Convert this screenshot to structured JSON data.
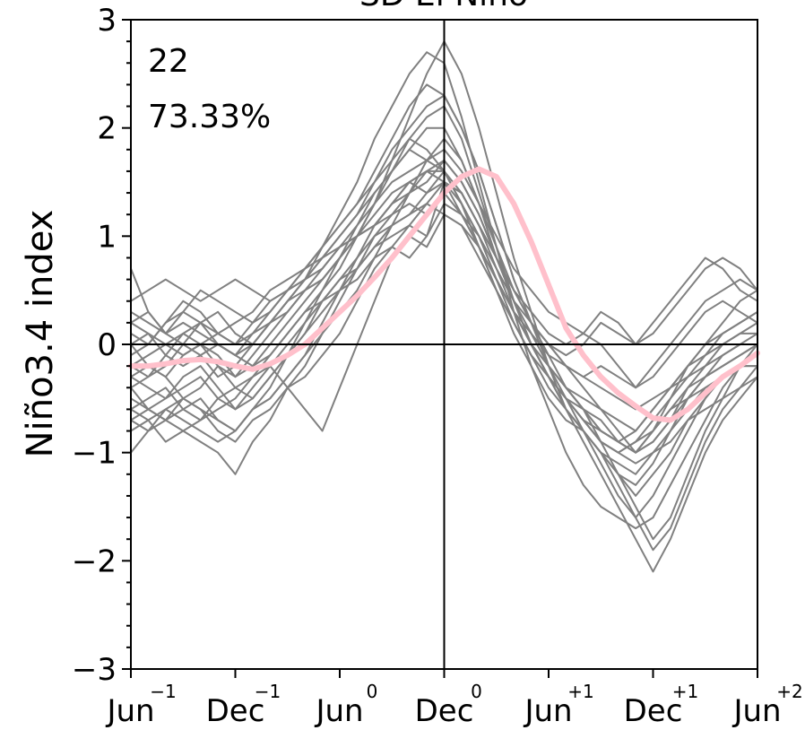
{
  "chart_data": {
    "type": "line",
    "title": "SD El Niño",
    "ylabel": "Niño3.4 index",
    "xlabel": "",
    "ylim": [
      -3,
      3
    ],
    "yticks": [
      -3,
      -2,
      -1,
      0,
      1,
      2,
      3
    ],
    "xticks": [
      {
        "label": "Jun",
        "sup": "−1",
        "month": 0
      },
      {
        "label": "Dec",
        "sup": "−1",
        "month": 6
      },
      {
        "label": "Jun",
        "sup": "0",
        "month": 12
      },
      {
        "label": "Dec",
        "sup": "0",
        "month": 18
      },
      {
        "label": "Jun",
        "sup": "+1",
        "month": 24
      },
      {
        "label": "Dec",
        "sup": "+1",
        "month": 30
      },
      {
        "label": "Jun",
        "sup": "+2",
        "month": 36
      }
    ],
    "xlim": [
      0,
      36
    ],
    "annotations": [
      "22",
      "73.33%"
    ],
    "member_color": "#808080",
    "mean_color": "#ffc0cb",
    "members": [
      [
        0.7,
        0.3,
        0.1,
        0.2,
        0.1,
        0.0,
        -0.1,
        -0.2,
        -0.1,
        0.1,
        0.3,
        0.5,
        0.7,
        1.0,
        1.3,
        1.7,
        2.1,
        2.5,
        2.8,
        2.5,
        2.0,
        1.4,
        0.8,
        0.3,
        -0.2,
        -0.6,
        -0.9,
        -1.2,
        -1.5,
        -1.8,
        -2.1,
        -1.8,
        -1.4,
        -1.0,
        -0.7,
        -0.5,
        -0.3
      ],
      [
        -0.2,
        -0.1,
        0.0,
        0.1,
        0.2,
        0.1,
        0.0,
        0.1,
        0.2,
        0.4,
        0.6,
        0.9,
        1.2,
        1.5,
        1.9,
        2.2,
        2.5,
        2.7,
        2.6,
        2.1,
        1.5,
        0.9,
        0.3,
        -0.2,
        -0.6,
        -1.0,
        -1.3,
        -1.5,
        -1.6,
        -1.7,
        -1.6,
        -1.3,
        -1.0,
        -0.7,
        -0.4,
        -0.2,
        -0.1
      ],
      [
        0.3,
        0.2,
        0.1,
        0.3,
        0.5,
        0.4,
        0.3,
        0.2,
        0.3,
        0.5,
        0.7,
        0.9,
        1.1,
        1.3,
        1.6,
        1.9,
        2.2,
        2.4,
        2.3,
        2.0,
        1.6,
        1.1,
        0.6,
        0.2,
        -0.1,
        -0.4,
        -0.6,
        -0.9,
        -1.2,
        -1.5,
        -1.8,
        -1.6,
        -1.2,
        -0.8,
        -0.5,
        -0.2,
        0.0
      ],
      [
        -0.6,
        -0.7,
        -0.6,
        -0.5,
        -0.6,
        -0.7,
        -0.8,
        -0.6,
        -0.4,
        -0.1,
        0.2,
        0.5,
        0.8,
        1.1,
        1.4,
        1.6,
        1.8,
        1.7,
        1.6,
        1.3,
        1.0,
        0.6,
        0.2,
        -0.1,
        -0.4,
        -0.6,
        -0.8,
        -1.0,
        -1.1,
        -1.2,
        -1.0,
        -0.8,
        -0.6,
        -0.4,
        -0.3,
        -0.2,
        -0.1
      ],
      [
        -0.7,
        -0.8,
        -0.7,
        -0.8,
        -0.9,
        -1.0,
        -1.2,
        -0.9,
        -0.7,
        -0.4,
        -0.2,
        0.1,
        0.4,
        0.7,
        1.0,
        1.2,
        1.4,
        1.6,
        1.7,
        1.5,
        1.2,
        0.8,
        0.4,
        0.0,
        -0.3,
        -0.5,
        -0.7,
        -0.9,
        -1.0,
        -0.9,
        -0.8,
        -0.6,
        -0.5,
        -0.4,
        -0.3,
        -0.2,
        -0.2
      ],
      [
        -1.0,
        -0.8,
        -0.6,
        -0.7,
        -0.8,
        -0.9,
        -0.8,
        -0.6,
        -0.5,
        -0.3,
        -0.1,
        0.2,
        0.5,
        0.8,
        1.1,
        1.3,
        1.5,
        1.4,
        1.5,
        1.2,
        0.9,
        0.6,
        0.3,
        0.0,
        -0.2,
        -0.4,
        -0.6,
        -0.8,
        -0.9,
        -1.0,
        -0.9,
        -0.7,
        -0.5,
        -0.3,
        -0.2,
        -0.1,
        0.0
      ],
      [
        0.1,
        0.0,
        0.2,
        0.4,
        0.3,
        0.1,
        0.0,
        0.2,
        0.4,
        0.5,
        0.6,
        0.7,
        0.9,
        1.0,
        1.2,
        1.4,
        1.5,
        1.6,
        1.6,
        1.4,
        1.1,
        0.8,
        0.5,
        0.3,
        0.1,
        0.0,
        0.1,
        0.3,
        0.2,
        0.0,
        0.1,
        0.3,
        0.5,
        0.7,
        0.8,
        0.7,
        0.5
      ],
      [
        -0.4,
        -0.3,
        -0.2,
        0.0,
        -0.1,
        -0.3,
        -0.2,
        0.0,
        0.2,
        0.4,
        0.5,
        0.6,
        0.8,
        1.0,
        1.1,
        1.2,
        1.3,
        1.2,
        1.4,
        1.2,
        1.0,
        0.7,
        0.4,
        0.2,
        0.0,
        -0.1,
        0.0,
        0.2,
        0.1,
        0.0,
        0.2,
        0.4,
        0.6,
        0.8,
        0.7,
        0.5,
        0.4
      ],
      [
        0.0,
        -0.2,
        -0.3,
        -0.1,
        0.0,
        -0.2,
        -0.4,
        -0.3,
        -0.1,
        0.1,
        0.3,
        0.4,
        0.6,
        0.7,
        0.9,
        1.0,
        1.1,
        1.0,
        1.3,
        1.2,
        0.9,
        0.6,
        0.3,
        0.1,
        -0.1,
        -0.2,
        -0.3,
        -0.2,
        -0.3,
        -0.4,
        -0.2,
        0.0,
        0.2,
        0.4,
        0.5,
        0.6,
        0.5
      ],
      [
        -0.3,
        -0.4,
        -0.5,
        -0.3,
        -0.2,
        -0.4,
        -0.6,
        -0.5,
        -0.3,
        -0.1,
        0.1,
        0.3,
        0.5,
        0.6,
        0.8,
        0.9,
        0.8,
        1.0,
        1.5,
        1.3,
        1.0,
        0.6,
        0.3,
        0.0,
        -0.2,
        -0.4,
        -0.5,
        -0.6,
        -0.7,
        -0.8,
        -0.6,
        -0.4,
        -0.2,
        -0.1,
        0.1,
        0.2,
        0.3
      ],
      [
        -0.5,
        -0.6,
        -0.7,
        -0.5,
        -0.6,
        -0.8,
        -0.9,
        -0.7,
        -0.6,
        -0.4,
        -0.3,
        -0.1,
        0.1,
        0.4,
        0.7,
        0.9,
        1.1,
        1.3,
        1.5,
        1.4,
        1.1,
        0.7,
        0.3,
        0.0,
        -0.3,
        -0.5,
        -0.7,
        -0.9,
        -1.0,
        -1.1,
        -1.0,
        -0.9,
        -0.7,
        -0.6,
        -0.5,
        -0.4,
        -0.3
      ],
      [
        -0.8,
        -0.7,
        -0.9,
        -0.8,
        -0.7,
        -0.6,
        -0.5,
        -0.3,
        -0.2,
        -0.4,
        -0.6,
        -0.8,
        -0.4,
        0.0,
        0.4,
        0.8,
        1.0,
        0.9,
        1.2,
        1.1,
        0.9,
        0.6,
        0.3,
        0.0,
        -0.3,
        -0.5,
        -0.7,
        -0.9,
        -1.0,
        -0.9,
        -0.7,
        -0.5,
        -0.3,
        -0.2,
        -0.1,
        0.0,
        0.1
      ],
      [
        0.2,
        0.1,
        0.0,
        -0.1,
        0.0,
        0.1,
        0.2,
        0.3,
        0.5,
        0.6,
        0.7,
        0.8,
        0.9,
        1.1,
        1.3,
        1.5,
        1.6,
        1.7,
        1.8,
        1.6,
        1.3,
        1.0,
        0.7,
        0.5,
        0.3,
        0.2,
        0.1,
        0.0,
        -0.2,
        -0.4,
        -0.3,
        -0.1,
        0.1,
        0.3,
        0.4,
        0.3,
        0.2
      ],
      [
        -0.2,
        -0.3,
        -0.1,
        0.1,
        0.0,
        -0.1,
        -0.3,
        -0.2,
        0.0,
        0.2,
        0.4,
        0.6,
        0.8,
        1.0,
        1.3,
        1.6,
        1.9,
        2.1,
        2.2,
        1.9,
        1.4,
        0.9,
        0.4,
        0.0,
        -0.3,
        -0.6,
        -0.8,
        -1.0,
        -1.2,
        -1.3,
        -1.1,
        -0.8,
        -0.5,
        -0.3,
        -0.1,
        0.0,
        0.0
      ],
      [
        -0.6,
        -0.5,
        -0.4,
        -0.6,
        -0.7,
        -0.5,
        -0.4,
        -0.5,
        -0.3,
        -0.1,
        0.1,
        0.4,
        0.6,
        0.8,
        1.0,
        1.1,
        1.2,
        1.4,
        1.6,
        1.3,
        0.9,
        0.5,
        0.1,
        -0.2,
        -0.5,
        -0.7,
        -0.8,
        -1.0,
        -1.3,
        -1.6,
        -1.4,
        -1.1,
        -0.8,
        -0.5,
        -0.3,
        -0.2,
        -0.2
      ],
      [
        0.4,
        0.5,
        0.6,
        0.5,
        0.4,
        0.5,
        0.6,
        0.5,
        0.4,
        0.5,
        0.6,
        0.8,
        1.0,
        1.2,
        1.4,
        1.6,
        1.8,
        2.0,
        2.0,
        1.7,
        1.3,
        0.9,
        0.5,
        0.2,
        0.0,
        -0.2,
        -0.4,
        -0.6,
        -0.8,
        -1.0,
        -0.8,
        -0.5,
        -0.2,
        0.0,
        0.2,
        0.4,
        0.5
      ],
      [
        -0.1,
        0.0,
        0.2,
        0.3,
        0.2,
        0.0,
        -0.1,
        0.1,
        0.3,
        0.5,
        0.7,
        0.9,
        1.1,
        1.3,
        1.5,
        1.7,
        1.9,
        1.8,
        1.6,
        1.3,
        0.9,
        0.5,
        0.2,
        -0.1,
        -0.3,
        -0.5,
        -0.7,
        -0.8,
        -0.9,
        -0.8,
        -0.6,
        -0.4,
        -0.2,
        0.0,
        0.1,
        0.2,
        0.3
      ],
      [
        -0.4,
        -0.6,
        -0.5,
        -0.4,
        -0.3,
        -0.5,
        -0.6,
        -0.4,
        -0.2,
        0.0,
        0.2,
        0.4,
        0.5,
        0.7,
        0.9,
        1.1,
        1.2,
        1.3,
        1.2,
        1.1,
        0.8,
        0.5,
        0.2,
        -0.1,
        -0.3,
        -0.5,
        -0.6,
        -0.8,
        -0.9,
        -1.0,
        -0.8,
        -0.6,
        -0.4,
        -0.3,
        -0.2,
        -0.1,
        0.0
      ],
      [
        0.2,
        0.3,
        0.1,
        0.0,
        0.2,
        0.3,
        0.1,
        0.0,
        0.2,
        0.4,
        0.6,
        0.8,
        1.0,
        1.2,
        1.5,
        1.8,
        2.0,
        2.2,
        2.3,
        2.0,
        1.6,
        1.1,
        0.6,
        0.2,
        -0.2,
        -0.5,
        -0.8,
        -1.1,
        -1.4,
        -1.6,
        -1.9,
        -1.7,
        -1.3,
        -0.9,
        -0.6,
        -0.4,
        -0.2
      ],
      [
        -0.3,
        -0.2,
        -0.3,
        -0.5,
        -0.4,
        -0.2,
        -0.3,
        -0.1,
        0.1,
        0.3,
        0.5,
        0.7,
        0.9,
        1.0,
        1.1,
        1.3,
        1.4,
        1.5,
        1.7,
        1.5,
        1.2,
        0.8,
        0.4,
        0.1,
        -0.2,
        -0.4,
        -0.6,
        -0.7,
        -0.9,
        -1.0,
        -0.9,
        -0.7,
        -0.4,
        -0.2,
        0.0,
        0.1,
        0.1
      ],
      [
        -0.7,
        -0.6,
        -0.7,
        -0.6,
        -0.5,
        -0.7,
        -0.8,
        -0.6,
        -0.5,
        -0.3,
        -0.1,
        0.1,
        0.3,
        0.5,
        0.8,
        1.1,
        1.4,
        1.7,
        1.9,
        1.7,
        1.3,
        0.8,
        0.4,
        0.0,
        -0.3,
        -0.6,
        -0.8,
        -1.0,
        -1.2,
        -1.4,
        -1.2,
        -1.0,
        -0.7,
        -0.5,
        -0.3,
        -0.2,
        -0.1
      ],
      [
        0.0,
        0.1,
        -0.1,
        -0.2,
        -0.1,
        0.0,
        -0.1,
        0.0,
        0.2,
        0.3,
        0.5,
        0.6,
        0.8,
        1.0,
        1.1,
        1.3,
        1.5,
        1.6,
        1.5,
        1.4,
        1.1,
        0.8,
        0.5,
        0.2,
        0.0,
        -0.2,
        -0.3,
        -0.4,
        -0.5,
        -0.6,
        -0.5,
        -0.4,
        -0.3,
        -0.1,
        0.0,
        0.1,
        0.2
      ]
    ],
    "mean": [
      -0.2,
      -0.2,
      -0.18,
      -0.15,
      -0.14,
      -0.16,
      -0.2,
      -0.23,
      -0.18,
      -0.1,
      0.0,
      0.15,
      0.3,
      0.45,
      0.62,
      0.8,
      1.0,
      1.2,
      1.4,
      1.55,
      1.62,
      1.55,
      1.3,
      0.95,
      0.55,
      0.15,
      -0.1,
      -0.3,
      -0.45,
      -0.57,
      -0.68,
      -0.7,
      -0.6,
      -0.45,
      -0.3,
      -0.2,
      -0.08
    ]
  }
}
